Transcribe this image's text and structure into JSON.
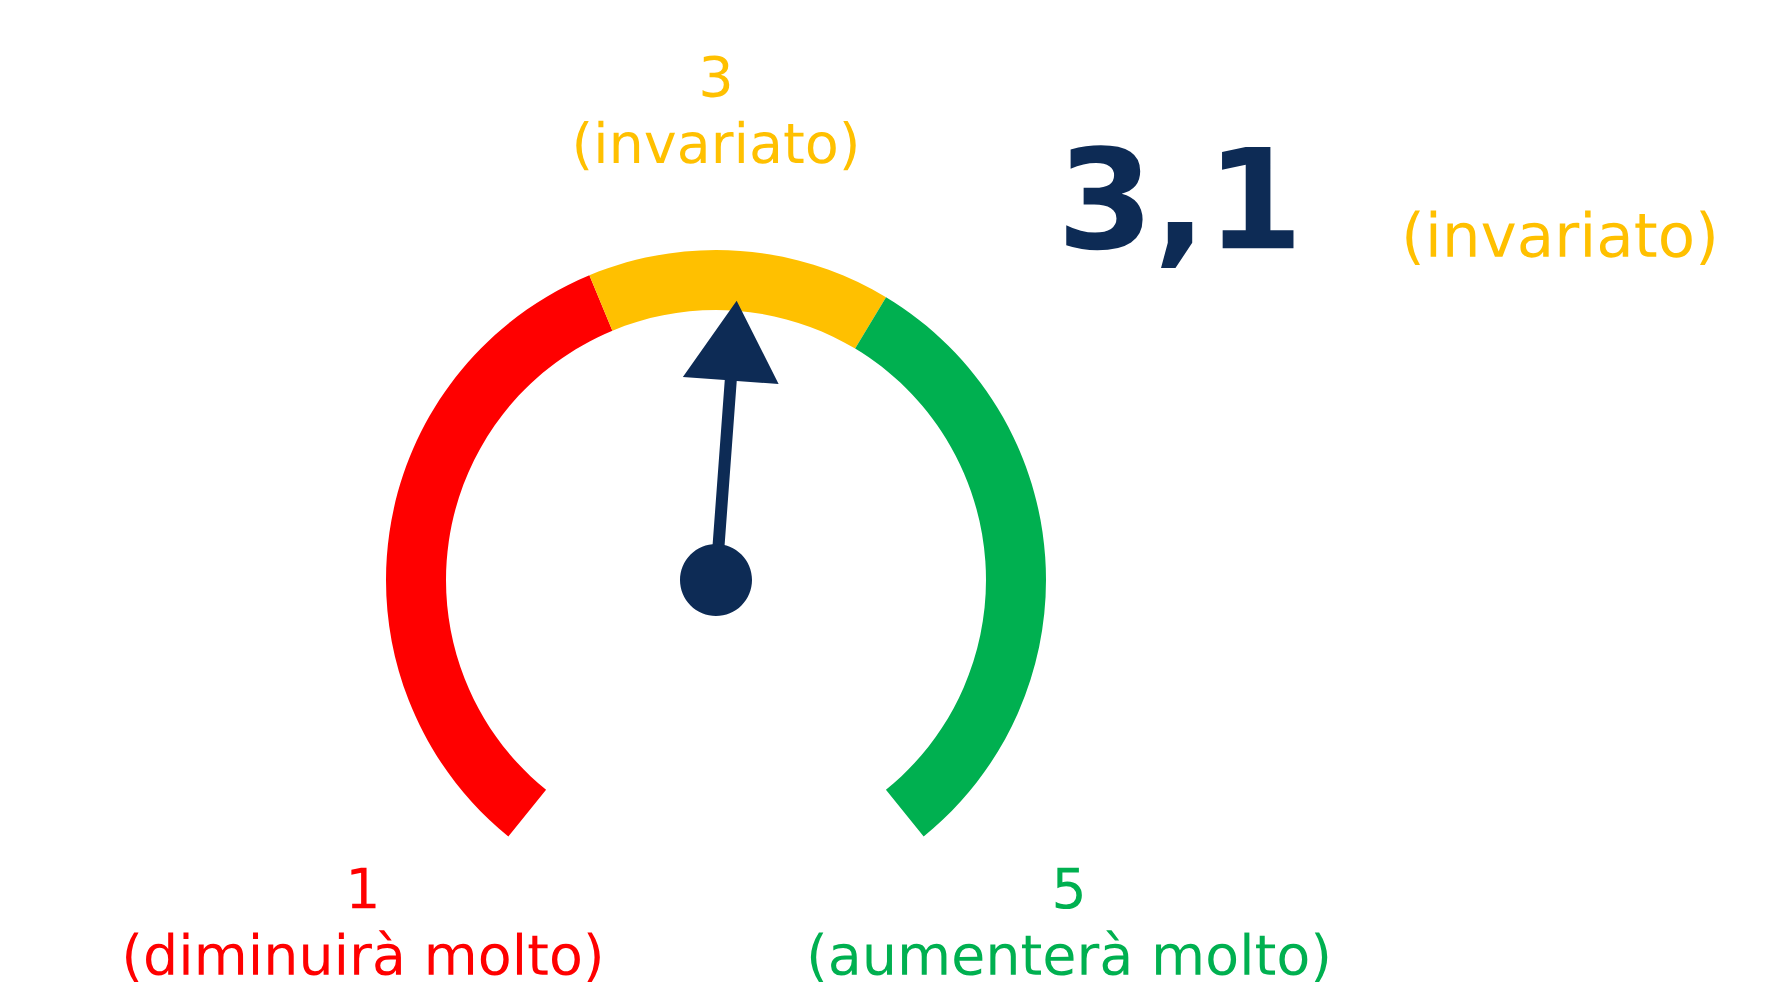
{
  "chart_data": {
    "type": "donut",
    "categories": [
      "1\n(diminuirà molto)",
      "3\n(invariato)",
      "5\n(aumenterà molto)"
    ],
    "values": [
      42,
      19,
      39
    ],
    "colors": [
      "#ff0000",
      "#ffc000",
      "#00b050"
    ],
    "needle": "3\n(invariato)",
    "annotations": [
      "3,1",
      "(invariato)"
    ]
  }
}
